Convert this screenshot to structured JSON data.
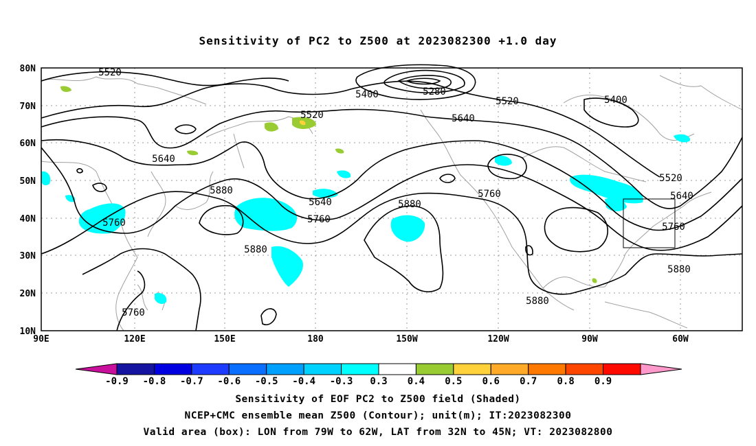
{
  "title": "Sensitivity of PC2 to Z500 at 2023082300 +1.0 day",
  "axes": {
    "y_labels": [
      "80N",
      "70N",
      "60N",
      "50N",
      "40N",
      "30N",
      "20N",
      "10N"
    ],
    "x_labels": [
      "90E",
      "120E",
      "150E",
      "180",
      "150W",
      "120W",
      "90W",
      "60W"
    ]
  },
  "contour_labels": [
    "5520",
    "5400",
    "5280",
    "5520",
    "5400",
    "5520",
    "5640",
    "5640",
    "5520",
    "5640",
    "5640",
    "5760",
    "5760",
    "5880",
    "5760",
    "5880",
    "5880",
    "5880",
    "5880",
    "5760",
    "5760"
  ],
  "colorbar": {
    "colors": [
      "#c8109c",
      "#1414a0",
      "#0000e0",
      "#1e3cff",
      "#0a6eff",
      "#00a0ff",
      "#00d2ff",
      "#00ffff",
      "#ffffff",
      "#99cc33",
      "#ffd23c",
      "#ffaa28",
      "#ff7800",
      "#ff4600",
      "#ff0a00",
      "#ff99cc"
    ],
    "labels": [
      "-0.9",
      "-0.8",
      "-0.7",
      "-0.6",
      "-0.5",
      "-0.4",
      "-0.3",
      "0.3",
      "0.4",
      "0.5",
      "0.6",
      "0.7",
      "0.8",
      "0.9"
    ]
  },
  "footer": {
    "line1": "Sensitivity of EOF PC2 to Z500 field (Shaded)",
    "line2": "NCEP+CMC ensemble mean Z500 (Contour); unit(m); IT:2023082300",
    "line3": "Valid area (box): LON from 79W to 62W, LAT from 32N to 45N; VT: 2023082800"
  },
  "colors": {
    "contour": "#000000",
    "coastline": "#a0a0a0",
    "grid": "#999999"
  }
}
